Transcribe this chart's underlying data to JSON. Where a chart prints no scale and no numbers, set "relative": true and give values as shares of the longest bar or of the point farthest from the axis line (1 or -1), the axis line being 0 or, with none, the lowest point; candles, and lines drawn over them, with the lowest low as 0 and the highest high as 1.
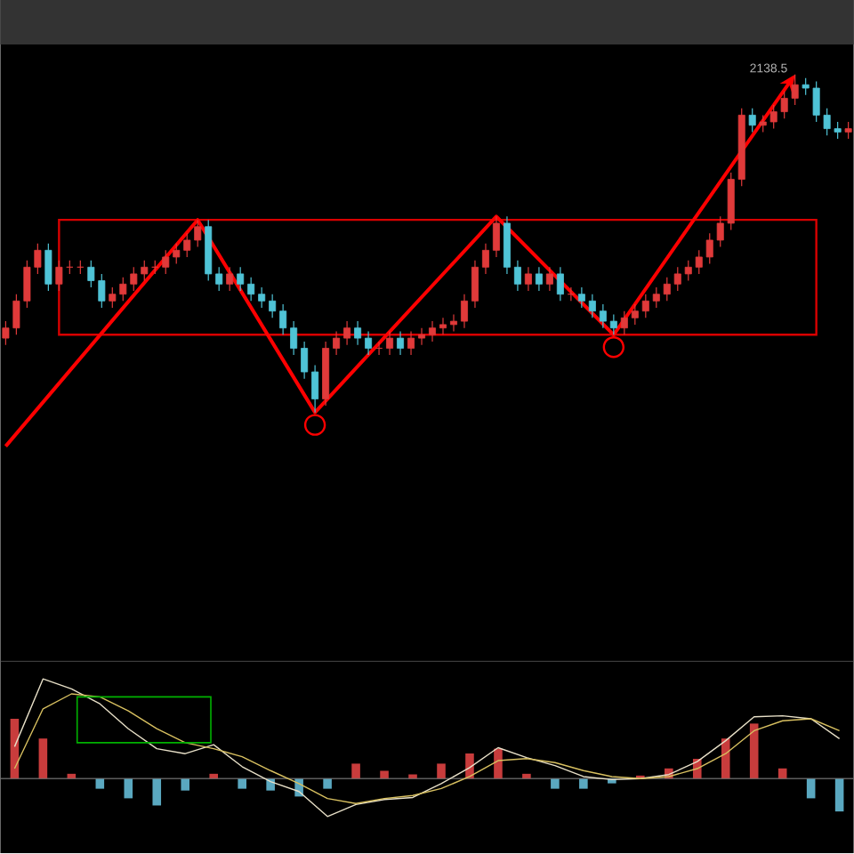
{
  "chart_data": [
    {
      "type": "candlestick",
      "relative": true,
      "categories": [
        null,
        null,
        null,
        null,
        null,
        null,
        null,
        null,
        null,
        null,
        null,
        null,
        null,
        null,
        null,
        null,
        null,
        null,
        null,
        null,
        null,
        null,
        null,
        null,
        null,
        null,
        null,
        null,
        null,
        null,
        null,
        null,
        null,
        null,
        null,
        null,
        null,
        null,
        null,
        null,
        null,
        null,
        null,
        null,
        null,
        null,
        null,
        null,
        null,
        null,
        null,
        null,
        null,
        null,
        null,
        null,
        null,
        null,
        null,
        null,
        null,
        null,
        null,
        null,
        null,
        null,
        null,
        null,
        null,
        null,
        null,
        null,
        null,
        null,
        null,
        null,
        null,
        null,
        null,
        null
      ],
      "ohlc": [
        [
          0.22,
          0.27,
          0.2,
          0.25
        ],
        [
          0.25,
          0.35,
          0.23,
          0.33
        ],
        [
          0.33,
          0.45,
          0.31,
          0.43
        ],
        [
          0.43,
          0.5,
          0.41,
          0.48
        ],
        [
          0.48,
          0.5,
          0.36,
          0.38
        ],
        [
          0.38,
          0.45,
          0.36,
          0.43
        ],
        [
          0.43,
          0.45,
          0.41,
          0.43
        ],
        [
          0.43,
          0.45,
          0.41,
          0.43
        ],
        [
          0.43,
          0.45,
          0.37,
          0.39
        ],
        [
          0.39,
          0.41,
          0.31,
          0.33
        ],
        [
          0.33,
          0.37,
          0.31,
          0.35
        ],
        [
          0.35,
          0.4,
          0.33,
          0.38
        ],
        [
          0.38,
          0.43,
          0.36,
          0.41
        ],
        [
          0.41,
          0.45,
          0.39,
          0.43
        ],
        [
          0.43,
          0.45,
          0.41,
          0.43
        ],
        [
          0.43,
          0.48,
          0.41,
          0.46
        ],
        [
          0.46,
          0.5,
          0.44,
          0.48
        ],
        [
          0.48,
          0.53,
          0.46,
          0.51
        ],
        [
          0.51,
          0.57,
          0.49,
          0.55
        ],
        [
          0.55,
          0.57,
          0.39,
          0.41
        ],
        [
          0.41,
          0.43,
          0.36,
          0.38
        ],
        [
          0.38,
          0.43,
          0.36,
          0.41
        ],
        [
          0.41,
          0.43,
          0.36,
          0.38
        ],
        [
          0.38,
          0.4,
          0.33,
          0.35
        ],
        [
          0.35,
          0.37,
          0.31,
          0.33
        ],
        [
          0.33,
          0.35,
          0.28,
          0.3
        ],
        [
          0.3,
          0.32,
          0.23,
          0.25
        ],
        [
          0.25,
          0.27,
          0.17,
          0.19
        ],
        [
          0.19,
          0.21,
          0.1,
          0.12
        ],
        [
          0.12,
          0.14,
          0.0,
          0.04
        ],
        [
          0.04,
          0.21,
          0.02,
          0.19
        ],
        [
          0.19,
          0.24,
          0.17,
          0.22
        ],
        [
          0.22,
          0.27,
          0.2,
          0.25
        ],
        [
          0.25,
          0.27,
          0.2,
          0.22
        ],
        [
          0.22,
          0.24,
          0.17,
          0.19
        ],
        [
          0.19,
          0.21,
          0.17,
          0.19
        ],
        [
          0.19,
          0.24,
          0.17,
          0.22
        ],
        [
          0.22,
          0.24,
          0.17,
          0.19
        ],
        [
          0.19,
          0.24,
          0.17,
          0.22
        ],
        [
          0.22,
          0.25,
          0.2,
          0.23
        ],
        [
          0.23,
          0.27,
          0.21,
          0.25
        ],
        [
          0.25,
          0.28,
          0.23,
          0.26
        ],
        [
          0.26,
          0.29,
          0.24,
          0.27
        ],
        [
          0.27,
          0.35,
          0.25,
          0.33
        ],
        [
          0.33,
          0.45,
          0.31,
          0.43
        ],
        [
          0.43,
          0.5,
          0.41,
          0.48
        ],
        [
          0.48,
          0.58,
          0.46,
          0.56
        ],
        [
          0.56,
          0.58,
          0.41,
          0.43
        ],
        [
          0.43,
          0.45,
          0.36,
          0.38
        ],
        [
          0.38,
          0.43,
          0.36,
          0.41
        ],
        [
          0.41,
          0.43,
          0.36,
          0.38
        ],
        [
          0.38,
          0.43,
          0.36,
          0.41
        ],
        [
          0.41,
          0.43,
          0.33,
          0.35
        ],
        [
          0.35,
          0.37,
          0.33,
          0.35
        ],
        [
          0.35,
          0.37,
          0.31,
          0.33
        ],
        [
          0.33,
          0.35,
          0.28,
          0.3
        ],
        [
          0.3,
          0.32,
          0.25,
          0.27
        ],
        [
          0.27,
          0.29,
          0.23,
          0.25
        ],
        [
          0.25,
          0.3,
          0.23,
          0.28
        ],
        [
          0.28,
          0.32,
          0.26,
          0.3
        ],
        [
          0.3,
          0.35,
          0.28,
          0.33
        ],
        [
          0.33,
          0.37,
          0.31,
          0.35
        ],
        [
          0.35,
          0.4,
          0.33,
          0.38
        ],
        [
          0.38,
          0.43,
          0.36,
          0.41
        ],
        [
          0.41,
          0.45,
          0.39,
          0.43
        ],
        [
          0.43,
          0.48,
          0.41,
          0.46
        ],
        [
          0.46,
          0.53,
          0.44,
          0.51
        ],
        [
          0.51,
          0.58,
          0.49,
          0.56
        ],
        [
          0.56,
          0.71,
          0.54,
          0.69
        ],
        [
          0.69,
          0.9,
          0.67,
          0.88
        ],
        [
          0.88,
          0.9,
          0.83,
          0.85
        ],
        [
          0.85,
          0.88,
          0.83,
          0.86
        ],
        [
          0.86,
          0.91,
          0.84,
          0.89
        ],
        [
          0.89,
          0.95,
          0.87,
          0.93
        ],
        [
          0.93,
          1.0,
          0.91,
          0.97
        ],
        [
          0.97,
          0.99,
          0.94,
          0.96
        ],
        [
          0.96,
          0.98,
          0.86,
          0.88
        ],
        [
          0.88,
          0.9,
          0.82,
          0.84
        ],
        [
          0.84,
          0.86,
          0.81,
          0.83
        ],
        [
          0.83,
          0.86,
          0.81,
          0.84
        ]
      ],
      "annotations": [
        "2138.5"
      ]
    },
    {
      "type": "line",
      "relative": true,
      "categories": [
        null,
        null,
        null,
        null,
        null,
        null,
        null,
        null,
        null,
        null,
        null,
        null,
        null,
        null,
        null,
        null,
        null,
        null,
        null,
        null,
        null,
        null,
        null,
        null,
        null,
        null,
        null,
        null,
        null,
        null
      ],
      "series": [
        {
          "color": "#e8e0c8",
          "values": [
            0.32,
            1.0,
            0.9,
            0.75,
            0.5,
            0.3,
            0.25,
            0.34,
            0.12,
            -0.03,
            -0.13,
            -0.38,
            -0.26,
            -0.21,
            -0.19,
            -0.05,
            0.11,
            0.31,
            0.21,
            0.13,
            0.02,
            -0.01,
            0,
            0.04,
            0.17,
            0.38,
            0.62,
            0.63,
            0.6,
            0.4
          ]
        },
        {
          "color": "#d8c060",
          "values": [
            0.1,
            0.7,
            0.85,
            0.82,
            0.68,
            0.5,
            0.36,
            0.3,
            0.22,
            0.08,
            -0.05,
            -0.2,
            -0.25,
            -0.2,
            -0.17,
            -0.1,
            0.02,
            0.18,
            0.2,
            0.16,
            0.08,
            0.02,
            0,
            0.02,
            0.1,
            0.25,
            0.48,
            0.58,
            0.6,
            0.48
          ]
        }
      ]
    },
    {
      "type": "bar",
      "relative": true,
      "categories": [
        null,
        null,
        null,
        null,
        null,
        null,
        null,
        null,
        null,
        null,
        null,
        null,
        null,
        null,
        null,
        null,
        null,
        null,
        null,
        null,
        null,
        null,
        null,
        null,
        null,
        null,
        null,
        null,
        null,
        null
      ],
      "values": [
        1,
        0.67,
        0.08,
        -0.17,
        -0.33,
        -0.45,
        -0.2,
        0.08,
        -0.17,
        -0.2,
        -0.3,
        -0.17,
        0.25,
        0.13,
        0.07,
        0.25,
        0.42,
        0.5,
        0.08,
        -0.17,
        -0.17,
        -0.08,
        0.05,
        0.17,
        0.33,
        0.67,
        0.92,
        0.17,
        -0.33,
        -0.55
      ],
      "colors": [
        "#c83c3c",
        "#c83c3c",
        "#c83c3c",
        "#5aa8c0",
        "#5aa8c0",
        "#5aa8c0",
        "#5aa8c0",
        "#c83c3c",
        "#5aa8c0",
        "#5aa8c0",
        "#5aa8c0",
        "#5aa8c0",
        "#c83c3c",
        "#c83c3c",
        "#c83c3c",
        "#c83c3c",
        "#c83c3c",
        "#c83c3c",
        "#c83c3c",
        "#5aa8c0",
        "#5aa8c0",
        "#5aa8c0",
        "#c83c3c",
        "#c83c3c",
        "#c83c3c",
        "#c83c3c",
        "#c83c3c",
        "#c83c3c",
        "#5aa8c0",
        "#5aa8c0"
      ]
    }
  ]
}
